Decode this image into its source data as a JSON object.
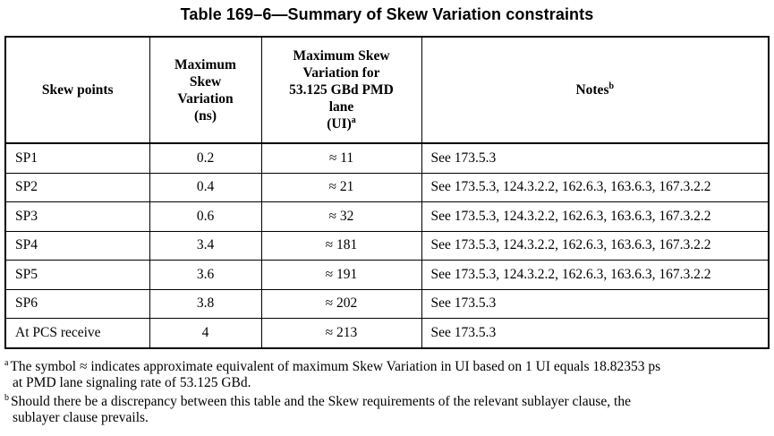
{
  "caption": "Table 169–6—Summary of Skew Variation constraints",
  "header": {
    "skew_points": "Skew points",
    "max_ns_line1": "Maximum",
    "max_ns_line2": "Skew",
    "max_ns_line3": "Variation",
    "max_ns_line4": "(ns)",
    "max_ui_line1": "Maximum Skew",
    "max_ui_line2": "Variation for",
    "max_ui_line3": "53.125 GBd PMD",
    "max_ui_line4": "lane",
    "max_ui_line5": "(UI)",
    "max_ui_sup": "a",
    "notes": "Notes",
    "notes_sup": "b"
  },
  "rows": [
    {
      "point": "SP1",
      "ns": "0.2",
      "ui": "≈ 11",
      "notes": "See 173.5.3"
    },
    {
      "point": "SP2",
      "ns": "0.4",
      "ui": "≈ 21",
      "notes": "See 173.5.3, 124.3.2.2, 162.6.3, 163.6.3, 167.3.2.2"
    },
    {
      "point": "SP3",
      "ns": "0.6",
      "ui": "≈ 32",
      "notes": "See 173.5.3, 124.3.2.2, 162.6.3, 163.6.3, 167.3.2.2"
    },
    {
      "point": "SP4",
      "ns": "3.4",
      "ui": "≈ 181",
      "notes": "See 173.5.3, 124.3.2.2, 162.6.3, 163.6.3, 167.3.2.2"
    },
    {
      "point": "SP5",
      "ns": "3.6",
      "ui": "≈ 191",
      "notes": "See 173.5.3, 124.3.2.2, 162.6.3, 163.6.3, 167.3.2.2"
    },
    {
      "point": "SP6",
      "ns": "3.8",
      "ui": "≈ 202",
      "notes": "See 173.5.3"
    },
    {
      "point": "At PCS receive",
      "ns": "4",
      "ui": "≈ 213",
      "notes": "See 173.5.3"
    }
  ],
  "footnotes": {
    "a_mark": "a",
    "a_line1": "The symbol ≈ indicates approximate equivalent of maximum Skew Variation in UI based on 1 UI equals 18.82353 ps",
    "a_line2": "at PMD lane signaling rate of 53.125 GBd.",
    "b_mark": "b",
    "b_line1": "Should there be a discrepancy between this table and the Skew requirements of the relevant sublayer clause, the",
    "b_line2": "sublayer clause prevails."
  }
}
